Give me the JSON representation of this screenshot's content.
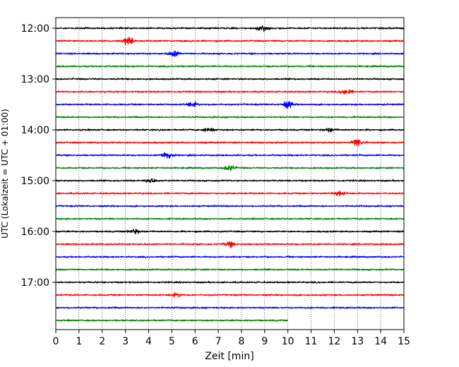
{
  "chart_data": {
    "type": "line",
    "title": "",
    "xlabel": "Zeit  [min]",
    "ylabel": "UTC (Lokalzeit = UTC + 01:00)",
    "xlim": [
      0,
      15
    ],
    "x_ticks": [
      "0",
      "1",
      "2",
      "3",
      "4",
      "5",
      "6",
      "7",
      "8",
      "9",
      "10",
      "11",
      "12",
      "13",
      "14",
      "15"
    ],
    "y_tick_labels": [
      "12:00",
      "13:00",
      "14:00",
      "15:00",
      "16:00",
      "17:00"
    ],
    "grid": "vertical-dotted",
    "trace_interval_minutes": 15,
    "start_time": "12:00",
    "last_trace_end_minute": 10,
    "line_colors": [
      "#000000",
      "#ff0000",
      "#0000ff",
      "#008000"
    ],
    "events": [
      {
        "trace": "12:00",
        "minute": 8.9,
        "amplitude": 0.55
      },
      {
        "trace": "12:15",
        "minute": 3.1,
        "amplitude": 0.75
      },
      {
        "trace": "12:30",
        "minute": 5.1,
        "amplitude": 0.65
      },
      {
        "trace": "13:15",
        "minute": 12.5,
        "amplitude": 0.5
      },
      {
        "trace": "13:30",
        "minute": 10.0,
        "amplitude": 0.6
      },
      {
        "trace": "13:30",
        "minute": 5.9,
        "amplitude": 0.45
      },
      {
        "trace": "14:00",
        "minute": 6.6,
        "amplitude": 0.4
      },
      {
        "trace": "14:00",
        "minute": 11.8,
        "amplitude": 0.35
      },
      {
        "trace": "14:15",
        "minute": 13.0,
        "amplitude": 0.75
      },
      {
        "trace": "14:30",
        "minute": 4.8,
        "amplitude": 0.7
      },
      {
        "trace": "14:45",
        "minute": 7.5,
        "amplitude": 0.55
      },
      {
        "trace": "15:00",
        "minute": 4.1,
        "amplitude": 0.4
      },
      {
        "trace": "15:15",
        "minute": 12.2,
        "amplitude": 0.45
      },
      {
        "trace": "16:00",
        "minute": 3.4,
        "amplitude": 0.4
      },
      {
        "trace": "16:15",
        "minute": 7.5,
        "amplitude": 0.45
      },
      {
        "trace": "17:15",
        "minute": 5.2,
        "amplitude": 0.35
      }
    ]
  }
}
